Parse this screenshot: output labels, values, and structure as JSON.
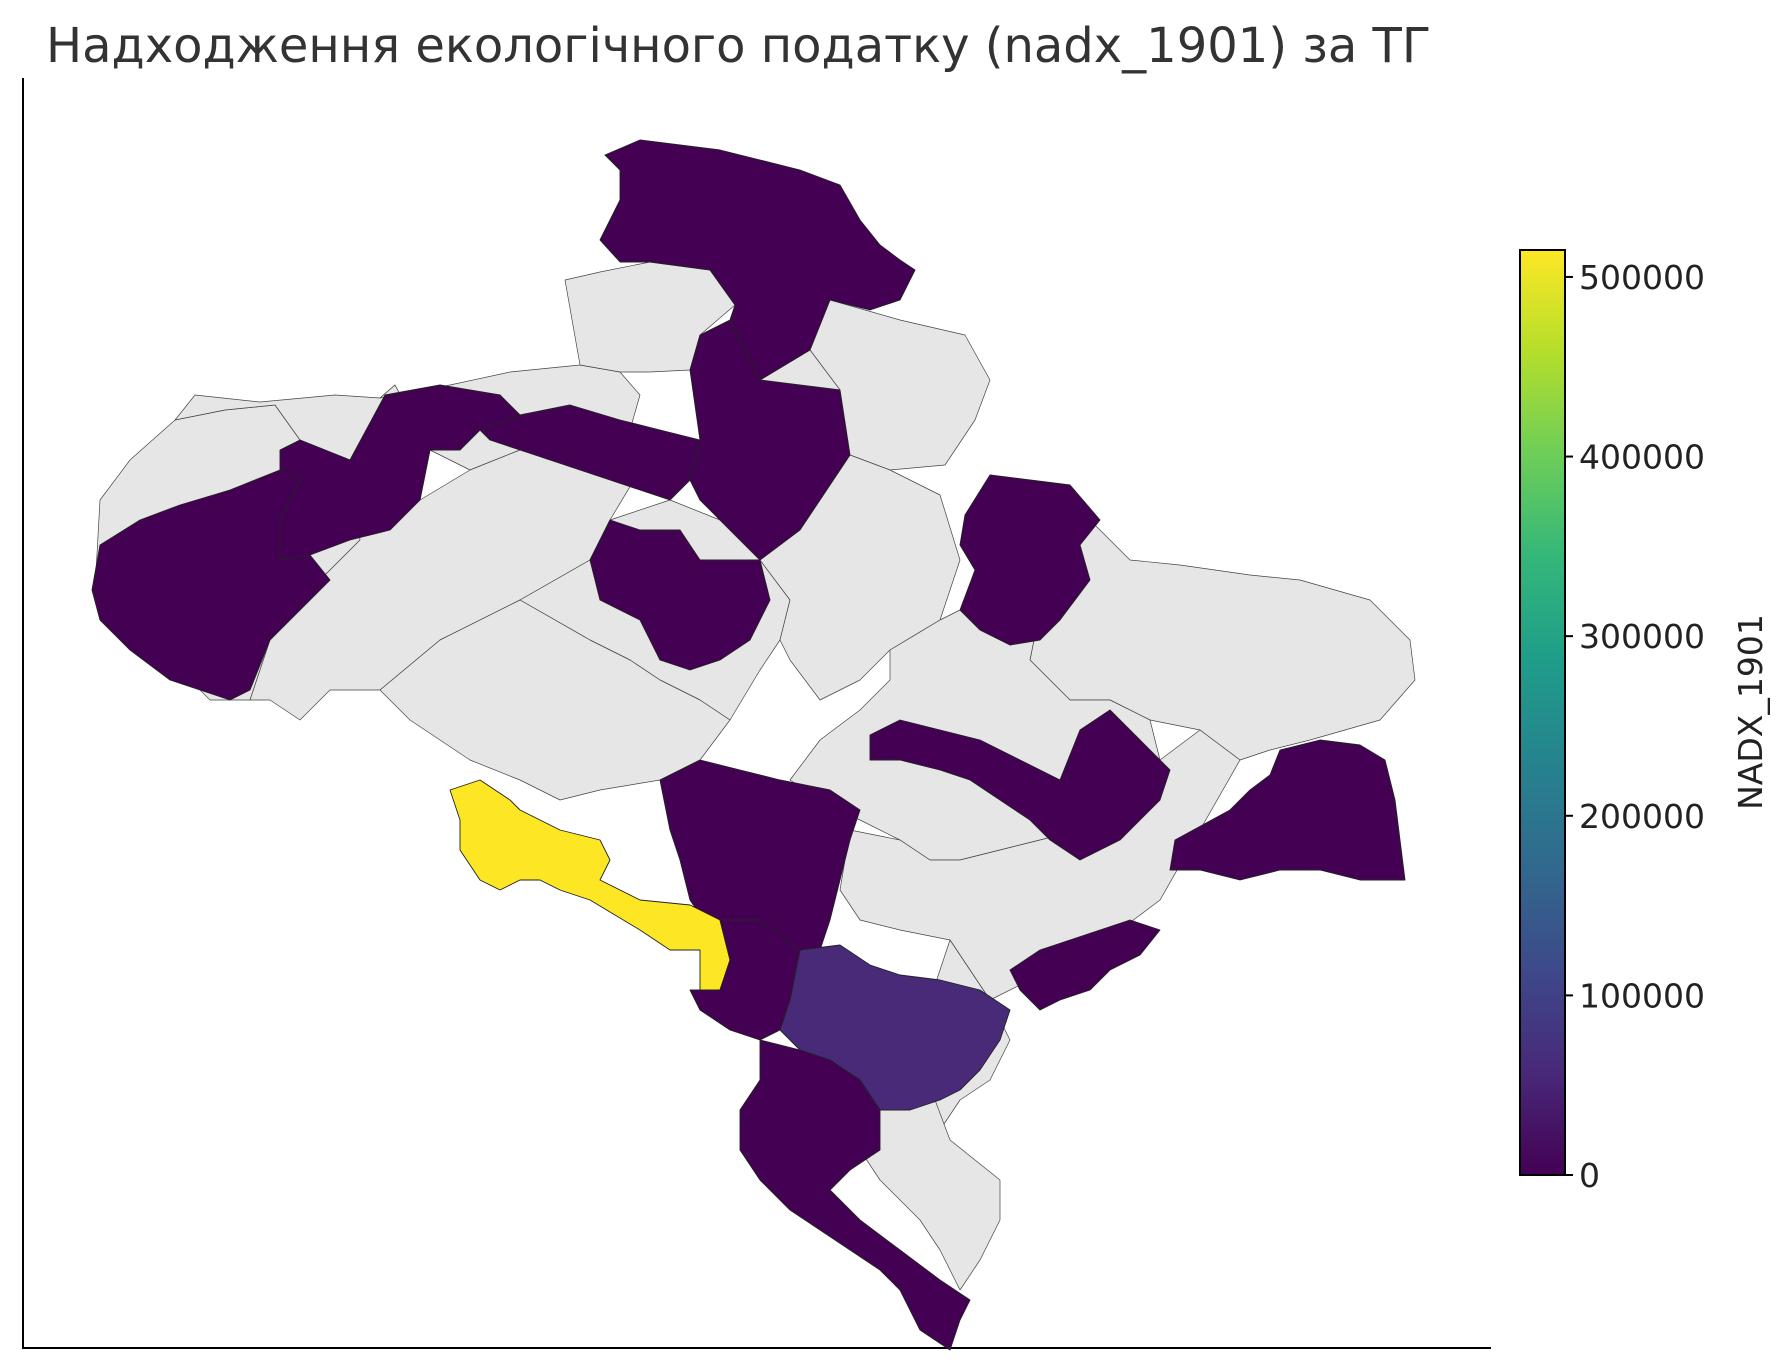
{
  "map": {
    "title": "Надходження екологічного податку (nadx_1901) за ТГ",
    "colorbar": {
      "label": "NADX_1901",
      "min": 0,
      "max": 515000,
      "ticks": [
        "0",
        "100000",
        "200000",
        "300000",
        "400000",
        "500000"
      ],
      "colormap": "viridis",
      "stops": [
        "#440154",
        "#482878",
        "#3e4989",
        "#31688e",
        "#26828e",
        "#1f9e89",
        "#35b779",
        "#6ece58",
        "#b5de2b",
        "#fde725"
      ]
    },
    "no_data_color": "#e6e6e6",
    "edge_color": "#222222"
  }
}
